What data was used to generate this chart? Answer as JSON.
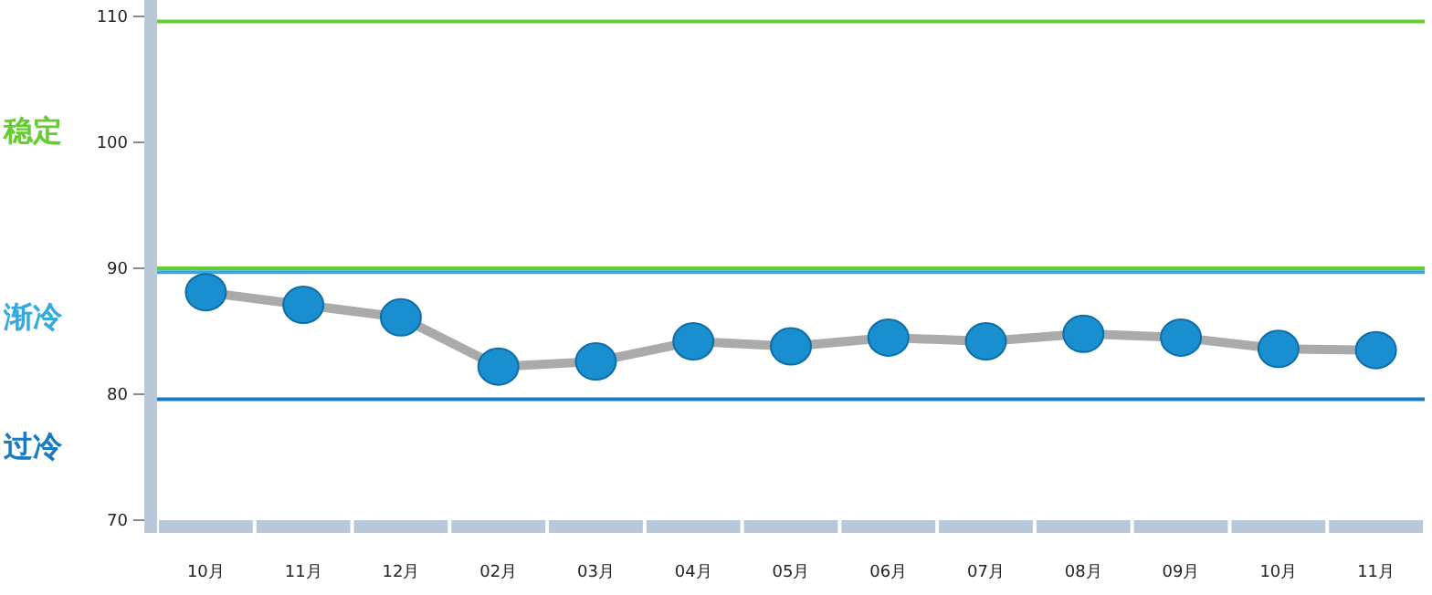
{
  "chart_data": {
    "type": "line",
    "categories": [
      "10月",
      "11月",
      "12月",
      "02月",
      "03月",
      "04月",
      "05月",
      "06月",
      "07月",
      "08月",
      "09月",
      "10月",
      "11月"
    ],
    "series": [
      {
        "color": "#1a8fd0",
        "values": [
          88.1,
          87.1,
          86.1,
          82.2,
          82.6,
          84.2,
          83.8,
          84.5,
          84.2,
          84.8,
          84.5,
          83.6,
          83.5
        ]
      }
    ],
    "ylim": [
      70,
      110
    ],
    "yticks": [
      70,
      80,
      90,
      100,
      110
    ],
    "ref_lines": [
      {
        "axis": "y",
        "value": 109.6,
        "color": "#66cc33"
      },
      {
        "axis": "y",
        "value": 90,
        "color": "#66cc33"
      },
      {
        "axis": "y",
        "value": 89.7,
        "color": "#33aadd"
      },
      {
        "axis": "y",
        "value": 79.6,
        "color": "#1a7abf"
      }
    ],
    "annotations": [
      "稳定",
      "渐冷",
      "过冷"
    ],
    "marker": "circle",
    "grid": false
  }
}
